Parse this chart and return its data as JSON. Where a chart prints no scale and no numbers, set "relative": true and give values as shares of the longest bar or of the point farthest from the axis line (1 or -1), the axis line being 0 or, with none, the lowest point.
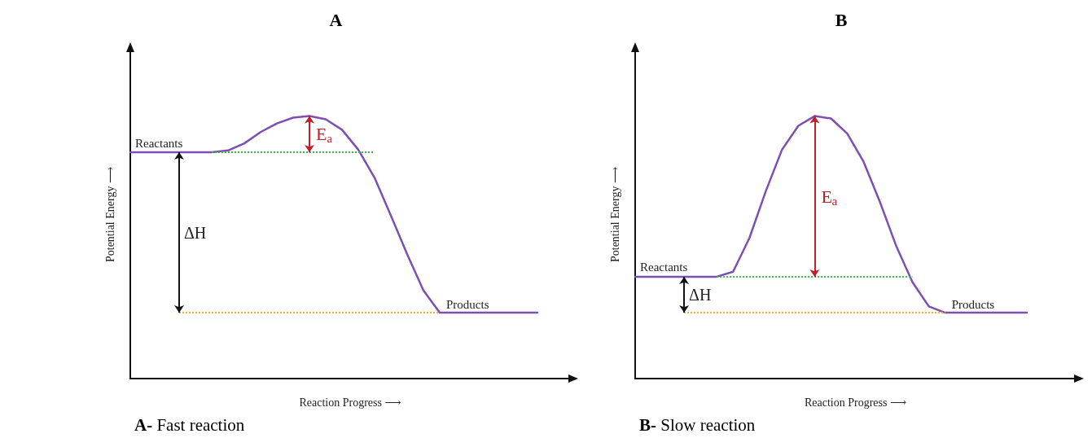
{
  "chart_data": [
    {
      "type": "line",
      "title": "A",
      "xlabel": "Reaction Progress ⟶",
      "ylabel": "Potential Energy ⟶",
      "relative": true,
      "grid": false,
      "marker": "none",
      "line_style": "solid",
      "categories": [
        null,
        null,
        null,
        null,
        null,
        null,
        null,
        null,
        null,
        null,
        null,
        null,
        null,
        null,
        null,
        null,
        null,
        null,
        null,
        null,
        null,
        null,
        null,
        null,
        null,
        null,
        null,
        null
      ],
      "series": [
        {
          "color": "#7d4fb5",
          "values": [
            0.862,
            0.862,
            0.862,
            0.862,
            0.862,
            0.862,
            0.869,
            0.896,
            0.939,
            0.972,
            0.994,
            1,
            0.988,
            0.948,
            0.872,
            0.765,
            0.621,
            0.474,
            0.336,
            0.251,
            0.251,
            0.251,
            0.251,
            0.251,
            0.251,
            0.251,
            null,
            null
          ]
        }
      ],
      "ref_lines": [
        {
          "axis": "y",
          "value": 0.862,
          "color": "#3cb44b",
          "line_style": "dotted"
        },
        {
          "axis": "y",
          "value": 0.251,
          "color": "#f0b040",
          "line_style": "dotted"
        }
      ],
      "annotations": [
        "Reactants",
        "Products",
        "ΔH",
        "E$_{a}$",
        "A- Fast reaction"
      ]
    },
    {
      "type": "line",
      "title": "B",
      "xlabel": "Reaction Progress ⟶",
      "ylabel": "Potential Energy ⟶",
      "relative": true,
      "grid": false,
      "marker": "none",
      "line_style": "solid",
      "categories": [
        null,
        null,
        null,
        null,
        null,
        null,
        null,
        null,
        null,
        null,
        null,
        null,
        null,
        null,
        null,
        null,
        null,
        null,
        null,
        null,
        null,
        null,
        null,
        null,
        null,
        null,
        null,
        null
      ],
      "series": [
        {
          "color": "#7d4fb5",
          "values": [
            0.388,
            0.388,
            0.388,
            0.388,
            0.388,
            0.388,
            0.407,
            0.535,
            0.713,
            0.872,
            0.963,
            1,
            0.991,
            0.933,
            0.826,
            0.673,
            0.505,
            0.367,
            0.275,
            0.251,
            0.251,
            0.251,
            0.251,
            0.251,
            0.251,
            null,
            null,
            null
          ]
        }
      ],
      "ref_lines": [
        {
          "axis": "y",
          "value": 0.388,
          "color": "#3cb44b",
          "line_style": "dotted"
        },
        {
          "axis": "y",
          "value": 0.251,
          "color": "#f0b040",
          "line_style": "dotted"
        }
      ],
      "annotations": [
        "Reactants",
        "Products",
        "ΔH",
        "E$_{a}$",
        "B- Slow reaction"
      ]
    }
  ]
}
